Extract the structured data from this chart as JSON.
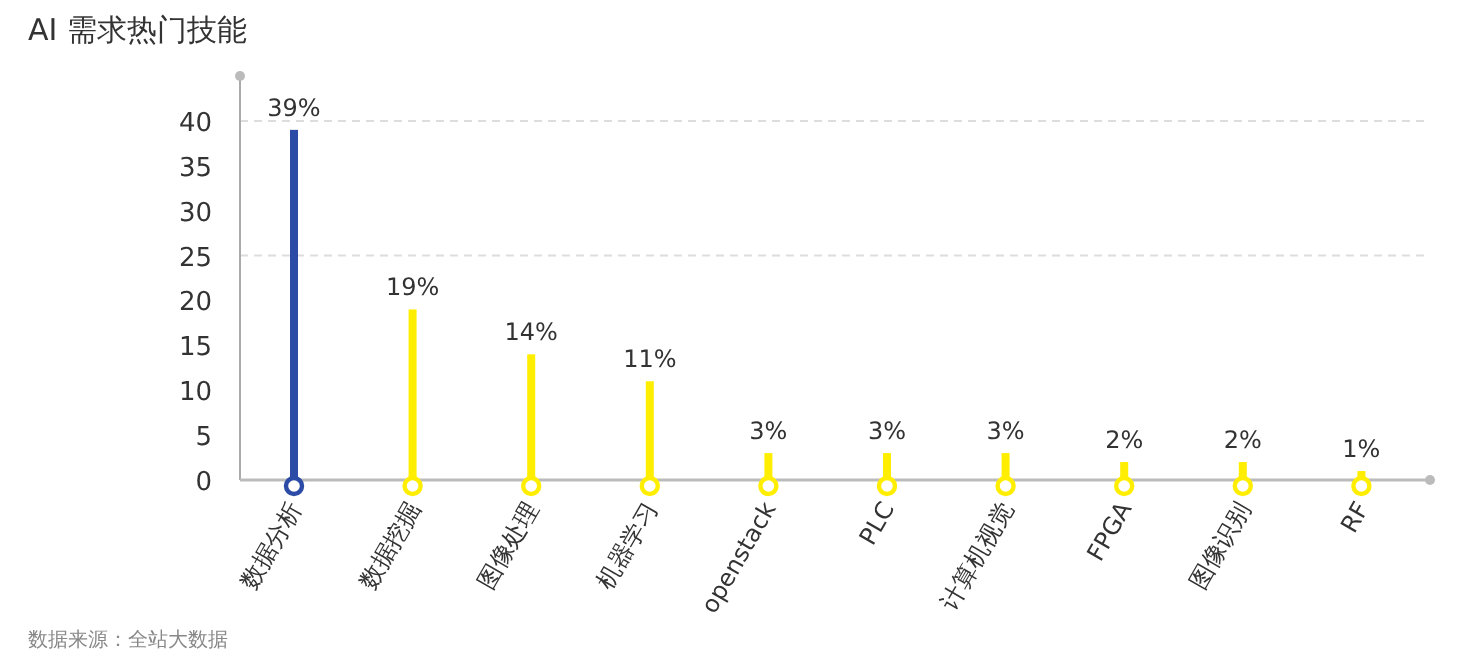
{
  "chart_data": {
    "type": "bar",
    "title": "AI 需求热门技能",
    "categories": [
      "数据分析",
      "数据挖掘",
      "图像处理",
      "机器学习",
      "openstack",
      "PLC",
      "计算机视觉",
      "FPGA",
      "图像识别",
      "RF"
    ],
    "values": [
      39,
      19,
      14,
      11,
      3,
      3,
      3,
      2,
      2,
      1
    ],
    "value_labels": [
      "39%",
      "19%",
      "14%",
      "11%",
      "3%",
      "3%",
      "3%",
      "2%",
      "2%",
      "1%"
    ],
    "colors": [
      "#2b4ba6",
      "#ffee00",
      "#ffee00",
      "#ffee00",
      "#ffee00",
      "#ffee00",
      "#ffee00",
      "#ffee00",
      "#ffee00",
      "#ffee00"
    ],
    "ylim": [
      0,
      45
    ],
    "yticks": [
      0,
      5,
      10,
      15,
      20,
      25,
      30,
      35,
      40
    ],
    "ref_lines": [
      {
        "axis": "y",
        "value": 40,
        "line_style": "dashed",
        "color": "#dddddd"
      },
      {
        "axis": "y",
        "value": 25,
        "line_style": "dashed",
        "color": "#dddddd"
      }
    ],
    "annotations": [
      "数据来源：全站大数据"
    ]
  }
}
